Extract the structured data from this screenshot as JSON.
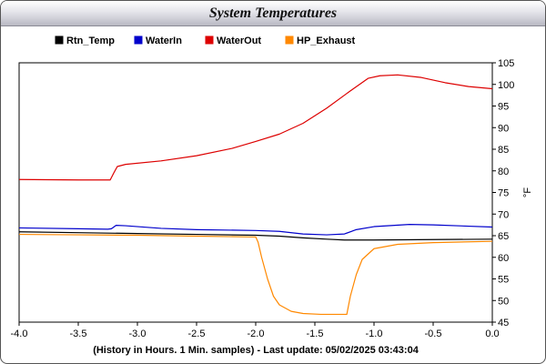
{
  "chart_data": {
    "type": "line",
    "title": "System Temperatures",
    "xlabel": "(History in Hours. 1 Min. samples) - Last update: 05/02/2025 03:43:04",
    "ylabel": "°F",
    "xlim": [
      -4.0,
      0.0
    ],
    "ylim": [
      45,
      105
    ],
    "x_ticks": [
      -4.0,
      -3.5,
      -3.0,
      -2.5,
      -2.0,
      -1.5,
      -1.0,
      -0.5,
      0.0
    ],
    "x_tick_labels": [
      "-4.0",
      "-3.5",
      "-3.0",
      "-2.5",
      "-2.0",
      "-1.5",
      "-1.0",
      "-0.5",
      "0.0"
    ],
    "y_ticks": [
      45,
      50,
      55,
      60,
      65,
      70,
      75,
      80,
      85,
      90,
      95,
      100,
      105
    ],
    "y_tick_labels": [
      "45",
      "50",
      "55",
      "60",
      "65",
      "70",
      "75",
      "80",
      "85",
      "90",
      "95",
      "100",
      "105"
    ],
    "y_axis_side": "right",
    "grid": false,
    "legend_position": "top",
    "series": [
      {
        "name": "Rtn_Temp",
        "color": "#000000",
        "points": [
          [
            -4.0,
            65.9
          ],
          [
            -3.5,
            65.7
          ],
          [
            -3.0,
            65.5
          ],
          [
            -2.5,
            65.3
          ],
          [
            -2.0,
            65.1
          ],
          [
            -1.8,
            64.9
          ],
          [
            -1.6,
            64.5
          ],
          [
            -1.4,
            64.2
          ],
          [
            -1.25,
            64.0
          ],
          [
            -1.0,
            64.0
          ],
          [
            -0.5,
            64.1
          ],
          [
            0.0,
            64.2
          ]
        ]
      },
      {
        "name": "WaterIn",
        "color": "#0000cc",
        "points": [
          [
            -4.0,
            66.8
          ],
          [
            -3.5,
            66.6
          ],
          [
            -3.25,
            66.5
          ],
          [
            -3.22,
            66.6
          ],
          [
            -3.18,
            67.4
          ],
          [
            -3.1,
            67.3
          ],
          [
            -2.8,
            66.7
          ],
          [
            -2.5,
            66.4
          ],
          [
            -2.0,
            66.2
          ],
          [
            -1.8,
            66.0
          ],
          [
            -1.6,
            65.4
          ],
          [
            -1.4,
            65.2
          ],
          [
            -1.25,
            65.4
          ],
          [
            -1.15,
            66.4
          ],
          [
            -1.0,
            67.1
          ],
          [
            -0.7,
            67.6
          ],
          [
            -0.5,
            67.5
          ],
          [
            0.0,
            67.0
          ]
        ]
      },
      {
        "name": "WaterOut",
        "color": "#dd0000",
        "points": [
          [
            -4.0,
            78.0
          ],
          [
            -3.5,
            77.9
          ],
          [
            -3.23,
            77.9
          ],
          [
            -3.2,
            79.5
          ],
          [
            -3.17,
            81.0
          ],
          [
            -3.1,
            81.5
          ],
          [
            -2.8,
            82.3
          ],
          [
            -2.5,
            83.5
          ],
          [
            -2.2,
            85.2
          ],
          [
            -2.0,
            86.8
          ],
          [
            -1.8,
            88.5
          ],
          [
            -1.6,
            91.0
          ],
          [
            -1.4,
            94.5
          ],
          [
            -1.2,
            98.5
          ],
          [
            -1.05,
            101.4
          ],
          [
            -0.95,
            102.0
          ],
          [
            -0.8,
            102.2
          ],
          [
            -0.6,
            101.6
          ],
          [
            -0.4,
            100.4
          ],
          [
            -0.2,
            99.5
          ],
          [
            0.0,
            99.0
          ]
        ]
      },
      {
        "name": "HP_Exhaust",
        "color": "#ff8800",
        "points": [
          [
            -4.0,
            65.3
          ],
          [
            -3.5,
            65.2
          ],
          [
            -3.0,
            65.1
          ],
          [
            -2.5,
            64.9
          ],
          [
            -2.0,
            64.7
          ],
          [
            -1.98,
            63.5
          ],
          [
            -1.95,
            60.0
          ],
          [
            -1.9,
            55.0
          ],
          [
            -1.85,
            51.0
          ],
          [
            -1.8,
            49.0
          ],
          [
            -1.7,
            47.5
          ],
          [
            -1.6,
            47.0
          ],
          [
            -1.45,
            46.8
          ],
          [
            -1.23,
            46.8
          ],
          [
            -1.2,
            51.0
          ],
          [
            -1.15,
            56.0
          ],
          [
            -1.1,
            59.5
          ],
          [
            -1.0,
            62.0
          ],
          [
            -0.8,
            63.0
          ],
          [
            -0.5,
            63.4
          ],
          [
            0.0,
            63.7
          ]
        ]
      }
    ]
  }
}
